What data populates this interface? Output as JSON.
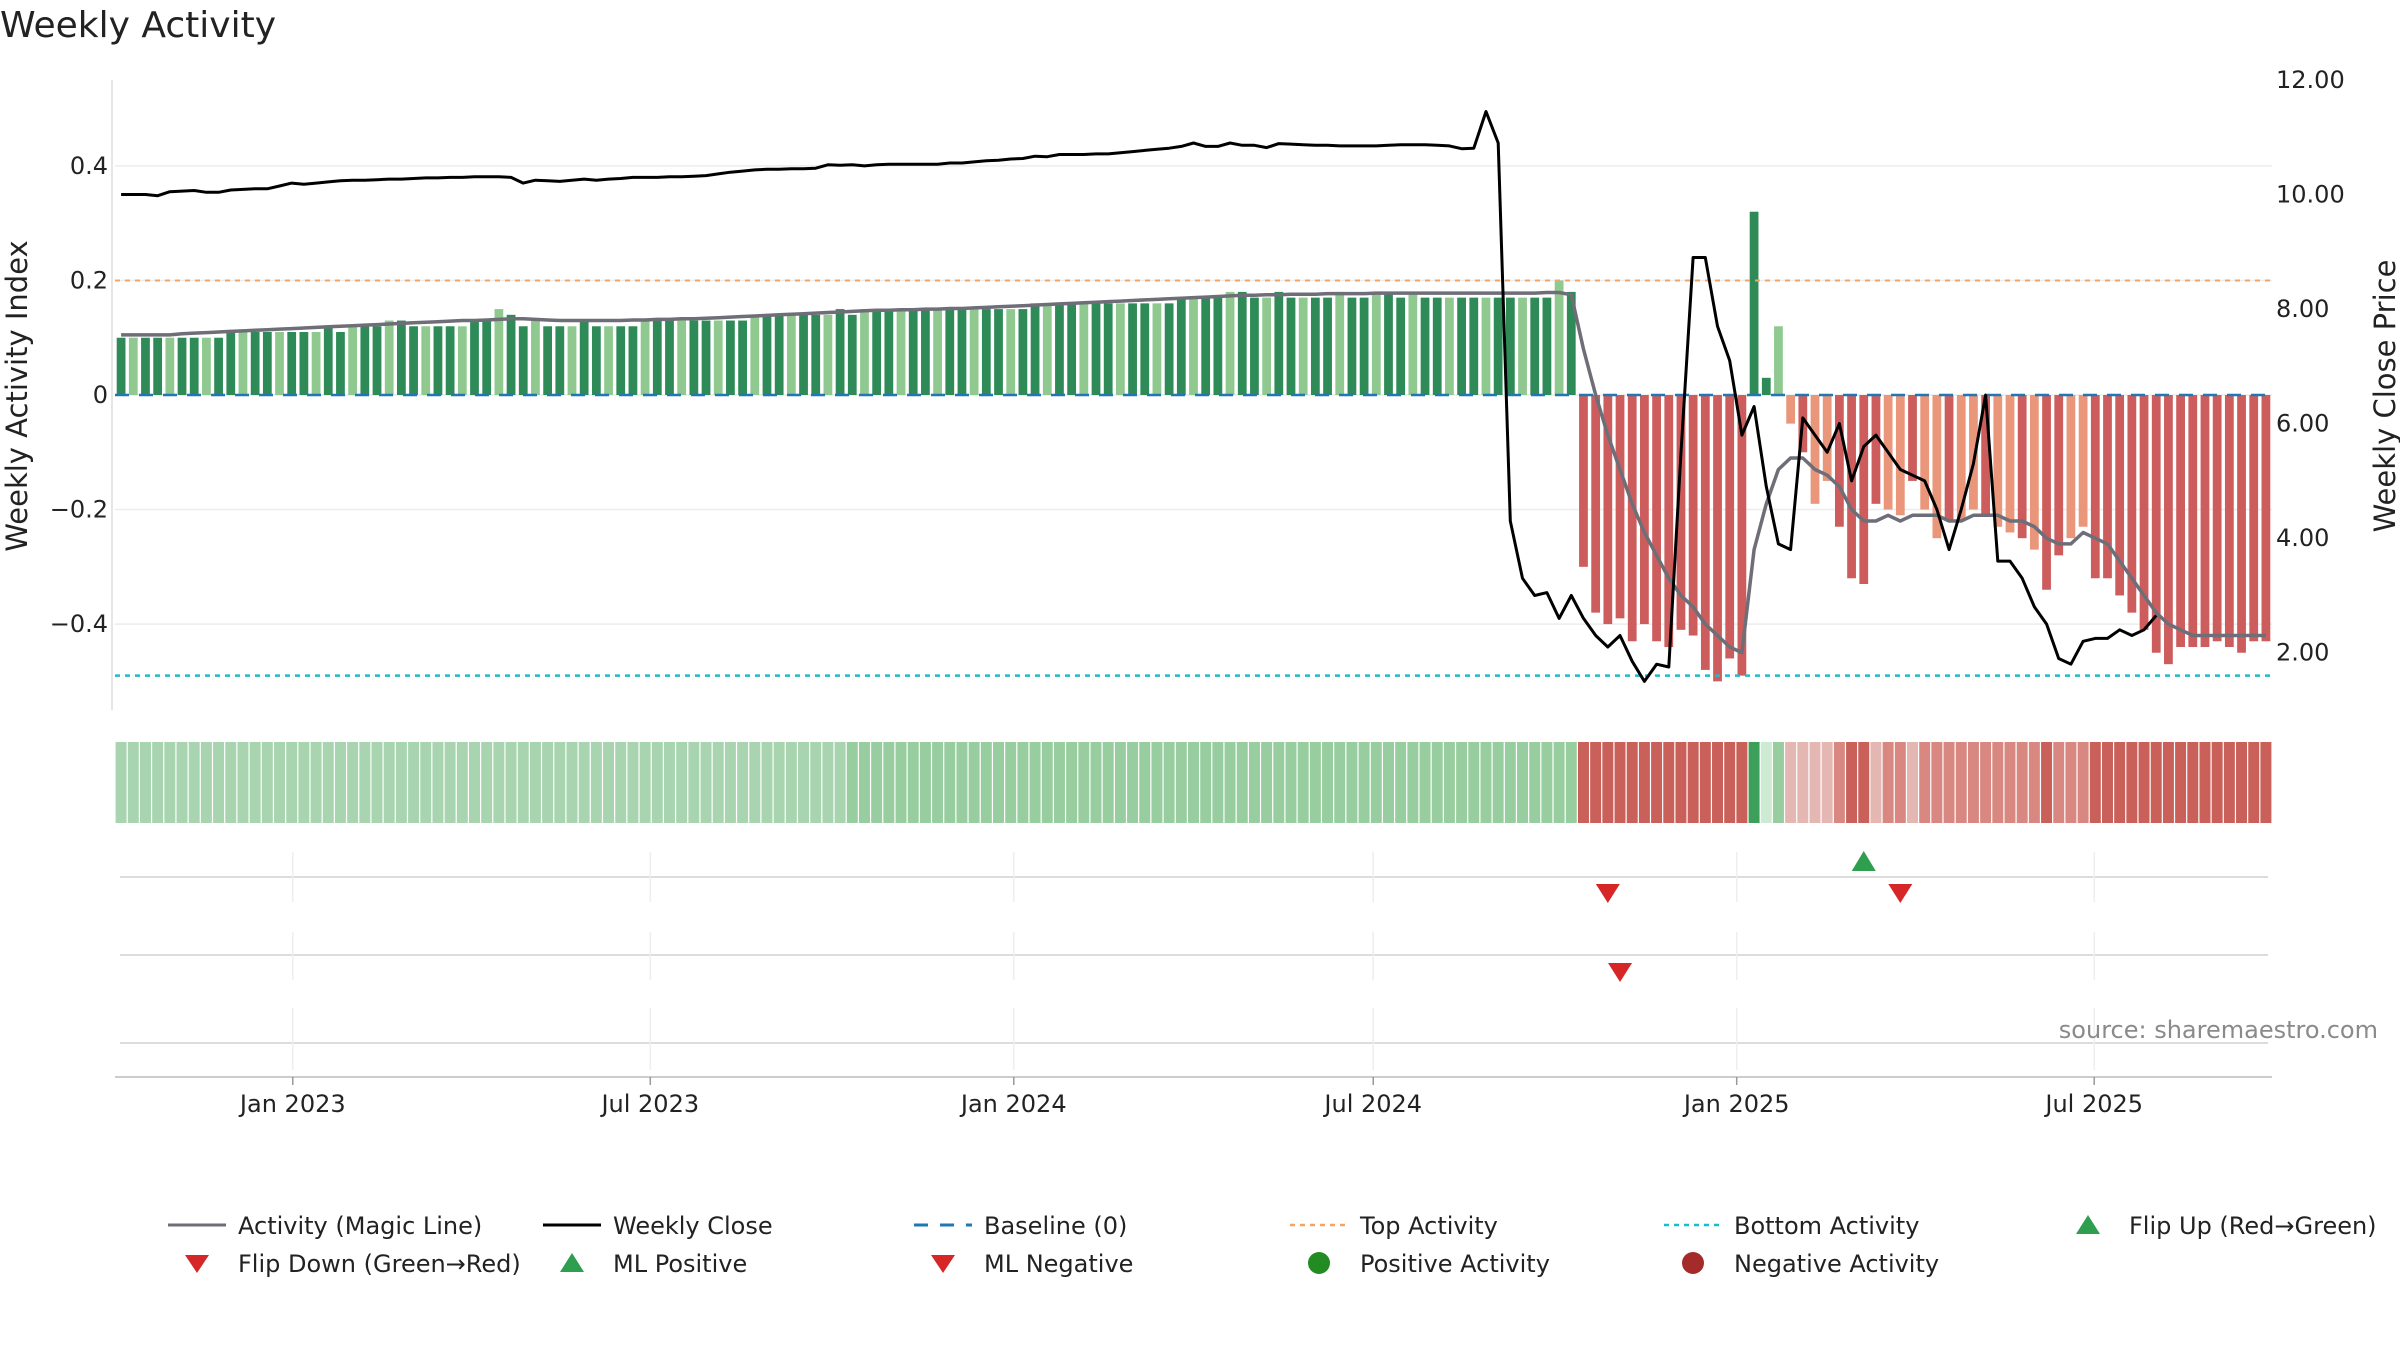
{
  "chart_data": {
    "type": "bar",
    "title": "Weekly Activity",
    "ylabel_left": "Weekly Activity Index",
    "ylabel_right": "Weekly Close Price",
    "ylim_left": [
      -0.55,
      0.55
    ],
    "ylim_right": [
      1.0,
      12.0
    ],
    "yticks_left": [
      {
        "value": 0.4,
        "label": "0.4"
      },
      {
        "value": 0.2,
        "label": "0.2"
      },
      {
        "value": 0,
        "label": "0"
      },
      {
        "value": -0.2,
        "label": "−0.2"
      },
      {
        "value": -0.4,
        "label": "−0.4"
      }
    ],
    "yticks_right": [
      {
        "value": 12,
        "label": "12.00"
      },
      {
        "value": 10,
        "label": "10.00"
      },
      {
        "value": 8,
        "label": "8.00"
      },
      {
        "value": 6,
        "label": "6.00"
      },
      {
        "value": 4,
        "label": "4.00"
      },
      {
        "value": 2,
        "label": "2.00"
      }
    ],
    "x_start": "2022-10-03",
    "x_end": "2025-09-29",
    "xticks": [
      {
        "date": "2023-01-01",
        "label": "Jan 2023"
      },
      {
        "date": "2023-07-01",
        "label": "Jul 2023"
      },
      {
        "date": "2024-01-01",
        "label": "Jan 2024"
      },
      {
        "date": "2024-07-01",
        "label": "Jul 2024"
      },
      {
        "date": "2025-01-01",
        "label": "Jan 2025"
      },
      {
        "date": "2025-07-01",
        "label": "Jul 2025"
      }
    ],
    "top_activity": 0.2,
    "bottom_activity": -0.49,
    "activity": [
      0.1,
      0.1,
      0.1,
      0.1,
      0.1,
      0.1,
      0.1,
      0.1,
      0.1,
      0.11,
      0.11,
      0.11,
      0.11,
      0.11,
      0.11,
      0.11,
      0.11,
      0.12,
      0.11,
      0.12,
      0.12,
      0.12,
      0.13,
      0.13,
      0.12,
      0.12,
      0.12,
      0.12,
      0.12,
      0.13,
      0.13,
      0.15,
      0.14,
      0.12,
      0.13,
      0.12,
      0.12,
      0.12,
      0.13,
      0.12,
      0.12,
      0.12,
      0.12,
      0.13,
      0.13,
      0.13,
      0.13,
      0.13,
      0.13,
      0.13,
      0.13,
      0.13,
      0.14,
      0.14,
      0.14,
      0.14,
      0.14,
      0.14,
      0.14,
      0.15,
      0.14,
      0.15,
      0.15,
      0.15,
      0.15,
      0.15,
      0.15,
      0.15,
      0.15,
      0.15,
      0.15,
      0.15,
      0.15,
      0.15,
      0.15,
      0.16,
      0.16,
      0.16,
      0.16,
      0.16,
      0.16,
      0.16,
      0.16,
      0.16,
      0.16,
      0.16,
      0.16,
      0.17,
      0.17,
      0.17,
      0.17,
      0.18,
      0.18,
      0.17,
      0.17,
      0.18,
      0.17,
      0.17,
      0.17,
      0.17,
      0.18,
      0.17,
      0.17,
      0.18,
      0.18,
      0.17,
      0.18,
      0.17,
      0.17,
      0.17,
      0.17,
      0.17,
      0.17,
      0.17,
      0.17,
      0.17,
      0.17,
      0.17,
      0.2,
      0.18,
      -0.3,
      -0.38,
      -0.4,
      -0.39,
      -0.43,
      -0.4,
      -0.43,
      -0.44,
      -0.41,
      -0.42,
      -0.48,
      -0.5,
      -0.46,
      -0.49,
      0.32,
      0.03,
      0.12,
      -0.05,
      -0.1,
      -0.19,
      -0.15,
      -0.23,
      -0.32,
      -0.33,
      -0.19,
      -0.2,
      -0.21,
      -0.15,
      -0.2,
      -0.25,
      -0.22,
      -0.22,
      -0.2,
      -0.21,
      -0.23,
      -0.24,
      -0.25,
      -0.27,
      -0.34,
      -0.28,
      -0.25,
      -0.23,
      -0.32,
      -0.32,
      -0.35,
      -0.38,
      -0.41,
      -0.45,
      -0.47,
      -0.44,
      -0.44,
      -0.44,
      -0.43,
      -0.44,
      -0.45,
      -0.43,
      -0.43
    ],
    "magic_line": [
      0.105,
      0.105,
      0.105,
      0.105,
      0.105,
      0.107,
      0.108,
      0.109,
      0.11,
      0.111,
      0.112,
      0.113,
      0.114,
      0.115,
      0.116,
      0.117,
      0.118,
      0.119,
      0.12,
      0.121,
      0.122,
      0.123,
      0.124,
      0.125,
      0.126,
      0.127,
      0.128,
      0.129,
      0.13,
      0.13,
      0.131,
      0.132,
      0.133,
      0.133,
      0.132,
      0.131,
      0.13,
      0.13,
      0.13,
      0.13,
      0.13,
      0.13,
      0.131,
      0.131,
      0.132,
      0.132,
      0.133,
      0.133,
      0.134,
      0.135,
      0.136,
      0.137,
      0.138,
      0.139,
      0.14,
      0.141,
      0.142,
      0.143,
      0.144,
      0.145,
      0.146,
      0.147,
      0.148,
      0.148,
      0.149,
      0.149,
      0.15,
      0.15,
      0.151,
      0.151,
      0.152,
      0.153,
      0.154,
      0.155,
      0.156,
      0.157,
      0.158,
      0.159,
      0.16,
      0.161,
      0.162,
      0.163,
      0.164,
      0.165,
      0.166,
      0.167,
      0.168,
      0.169,
      0.17,
      0.171,
      0.172,
      0.173,
      0.174,
      0.174,
      0.175,
      0.175,
      0.176,
      0.176,
      0.176,
      0.177,
      0.177,
      0.177,
      0.177,
      0.178,
      0.178,
      0.178,
      0.178,
      0.178,
      0.178,
      0.178,
      0.178,
      0.178,
      0.178,
      0.178,
      0.178,
      0.178,
      0.178,
      0.179,
      0.179,
      0.175,
      0.08,
      0.0,
      -0.07,
      -0.13,
      -0.19,
      -0.24,
      -0.28,
      -0.32,
      -0.35,
      -0.37,
      -0.4,
      -0.42,
      -0.44,
      -0.45,
      -0.27,
      -0.19,
      -0.13,
      -0.11,
      -0.11,
      -0.13,
      -0.14,
      -0.16,
      -0.2,
      -0.22,
      -0.22,
      -0.21,
      -0.22,
      -0.21,
      -0.21,
      -0.21,
      -0.22,
      -0.22,
      -0.21,
      -0.21,
      -0.21,
      -0.22,
      -0.22,
      -0.23,
      -0.25,
      -0.26,
      -0.26,
      -0.24,
      -0.25,
      -0.26,
      -0.29,
      -0.32,
      -0.35,
      -0.38,
      -0.4,
      -0.41,
      -0.42,
      -0.42,
      -0.42,
      -0.42,
      -0.42,
      -0.42,
      -0.42
    ],
    "weekly_close": [
      10.0,
      10.0,
      10.0,
      9.98,
      10.05,
      10.06,
      10.07,
      10.04,
      10.04,
      10.08,
      10.09,
      10.1,
      10.1,
      10.15,
      10.2,
      10.18,
      10.2,
      10.22,
      10.24,
      10.25,
      10.25,
      10.26,
      10.27,
      10.27,
      10.28,
      10.29,
      10.29,
      10.3,
      10.3,
      10.31,
      10.31,
      10.31,
      10.3,
      10.2,
      10.25,
      10.24,
      10.23,
      10.25,
      10.27,
      10.25,
      10.27,
      10.28,
      10.3,
      10.3,
      10.3,
      10.31,
      10.31,
      10.32,
      10.33,
      10.36,
      10.39,
      10.41,
      10.43,
      10.44,
      10.44,
      10.45,
      10.45,
      10.46,
      10.52,
      10.51,
      10.52,
      10.5,
      10.52,
      10.53,
      10.53,
      10.53,
      10.53,
      10.53,
      10.55,
      10.55,
      10.57,
      10.59,
      10.6,
      10.62,
      10.63,
      10.67,
      10.66,
      10.7,
      10.7,
      10.7,
      10.71,
      10.71,
      10.73,
      10.75,
      10.77,
      10.79,
      10.81,
      10.84,
      10.9,
      10.84,
      10.84,
      10.9,
      10.86,
      10.86,
      10.82,
      10.89,
      10.88,
      10.87,
      10.86,
      10.86,
      10.85,
      10.85,
      10.85,
      10.85,
      10.86,
      10.87,
      10.87,
      10.87,
      10.86,
      10.85,
      10.8,
      10.81,
      11.45,
      10.9,
      4.3,
      3.3,
      3.0,
      3.05,
      2.6,
      3.0,
      2.6,
      2.3,
      2.1,
      2.3,
      1.85,
      1.5,
      1.8,
      1.75,
      5.5,
      8.9,
      8.9,
      7.7,
      7.1,
      5.8,
      6.3,
      4.9,
      3.9,
      3.8,
      6.1,
      5.8,
      5.5,
      6.0,
      5.0,
      5.6,
      5.8,
      5.5,
      5.2,
      5.1,
      5.0,
      4.5,
      3.8,
      4.5,
      5.3,
      6.5,
      3.6,
      3.6,
      3.3,
      2.8,
      2.5,
      1.9,
      1.8,
      2.2,
      2.25,
      2.25,
      2.4,
      2.3,
      2.4,
      2.65
    ],
    "bar_colors": {
      "pos_dark": "#2e8b57",
      "pos_light": "#8fc98f",
      "neg_dark": "#cd5c5c",
      "neg_light": "#e9967a"
    },
    "heat_colors": {
      "pos_light": "#a8d5b0",
      "pos_mid": "#98ce9f",
      "pos_strong": "#3da05a",
      "pos_pale": "#cdebd2",
      "neg_strong": "#c9605a",
      "neg_mid": "#d88880",
      "neg_pale": "#e5b7b2"
    },
    "line_colors": {
      "magic_line": "#6e6e78",
      "weekly_close": "#000000",
      "baseline": "#1f77b4",
      "top_activity": "#f4a460",
      "bottom_activity": "#17becf",
      "flip_up": "#2e9e4f",
      "flip_down": "#d62728",
      "positive_activity": "#228b22",
      "negative_activity": "#a52a2a"
    },
    "flip_up_weeks": [
      143
    ],
    "flip_down_weeks": [
      122,
      146
    ],
    "ml_negative_weeks": [
      123
    ],
    "source_text": "source: sharemaestro.com",
    "legend": [
      {
        "label": "Activity (Magic Line)",
        "kind": "line",
        "color": "#6e6e78"
      },
      {
        "label": "Weekly Close",
        "kind": "line",
        "color": "#000000"
      },
      {
        "label": "Baseline (0)",
        "kind": "dash",
        "color": "#1f77b4"
      },
      {
        "label": "Top Activity",
        "kind": "dot",
        "color": "#f4a460"
      },
      {
        "label": "Bottom Activity",
        "kind": "dot",
        "color": "#17becf"
      },
      {
        "label": "Flip Up (Red→Green)",
        "kind": "tri-up",
        "color": "#2e9e4f"
      },
      {
        "label": "Flip Down (Green→Red)",
        "kind": "tri-down",
        "color": "#d62728"
      },
      {
        "label": "ML Positive",
        "kind": "tri-up",
        "color": "#2e9e4f"
      },
      {
        "label": "ML Negative",
        "kind": "tri-down",
        "color": "#d62728"
      },
      {
        "label": "Positive Activity",
        "kind": "circle",
        "color": "#228b22"
      },
      {
        "label": "Negative Activity",
        "kind": "circle",
        "color": "#a52a2a"
      }
    ]
  }
}
